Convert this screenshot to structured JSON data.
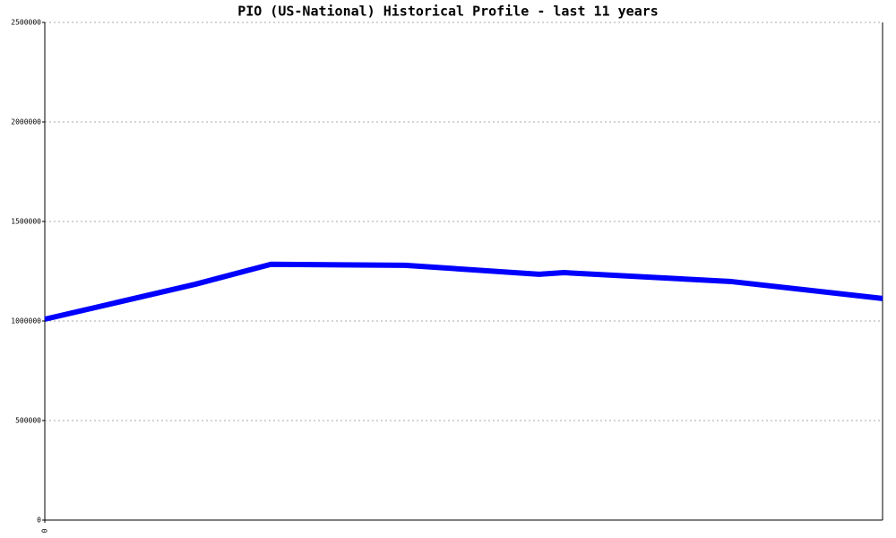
{
  "chart_data": {
    "type": "line",
    "title": "PIO (US-National) Historical Profile - last 11 years",
    "x": [
      0,
      1.8,
      2.7,
      4.3,
      5.9,
      6.2,
      8.2,
      10
    ],
    "series": [
      {
        "color": "#0000ff",
        "values": [
          1009000,
          1185000,
          1285000,
          1280000,
          1235000,
          1243000,
          1198000,
          1113000
        ]
      }
    ],
    "xlim": [
      0,
      10
    ],
    "xticks": [
      0
    ],
    "ylim": [
      0,
      2500000
    ],
    "yticks": [
      0,
      500000,
      1000000,
      1500000,
      2000000,
      2500000
    ],
    "grid": true
  }
}
